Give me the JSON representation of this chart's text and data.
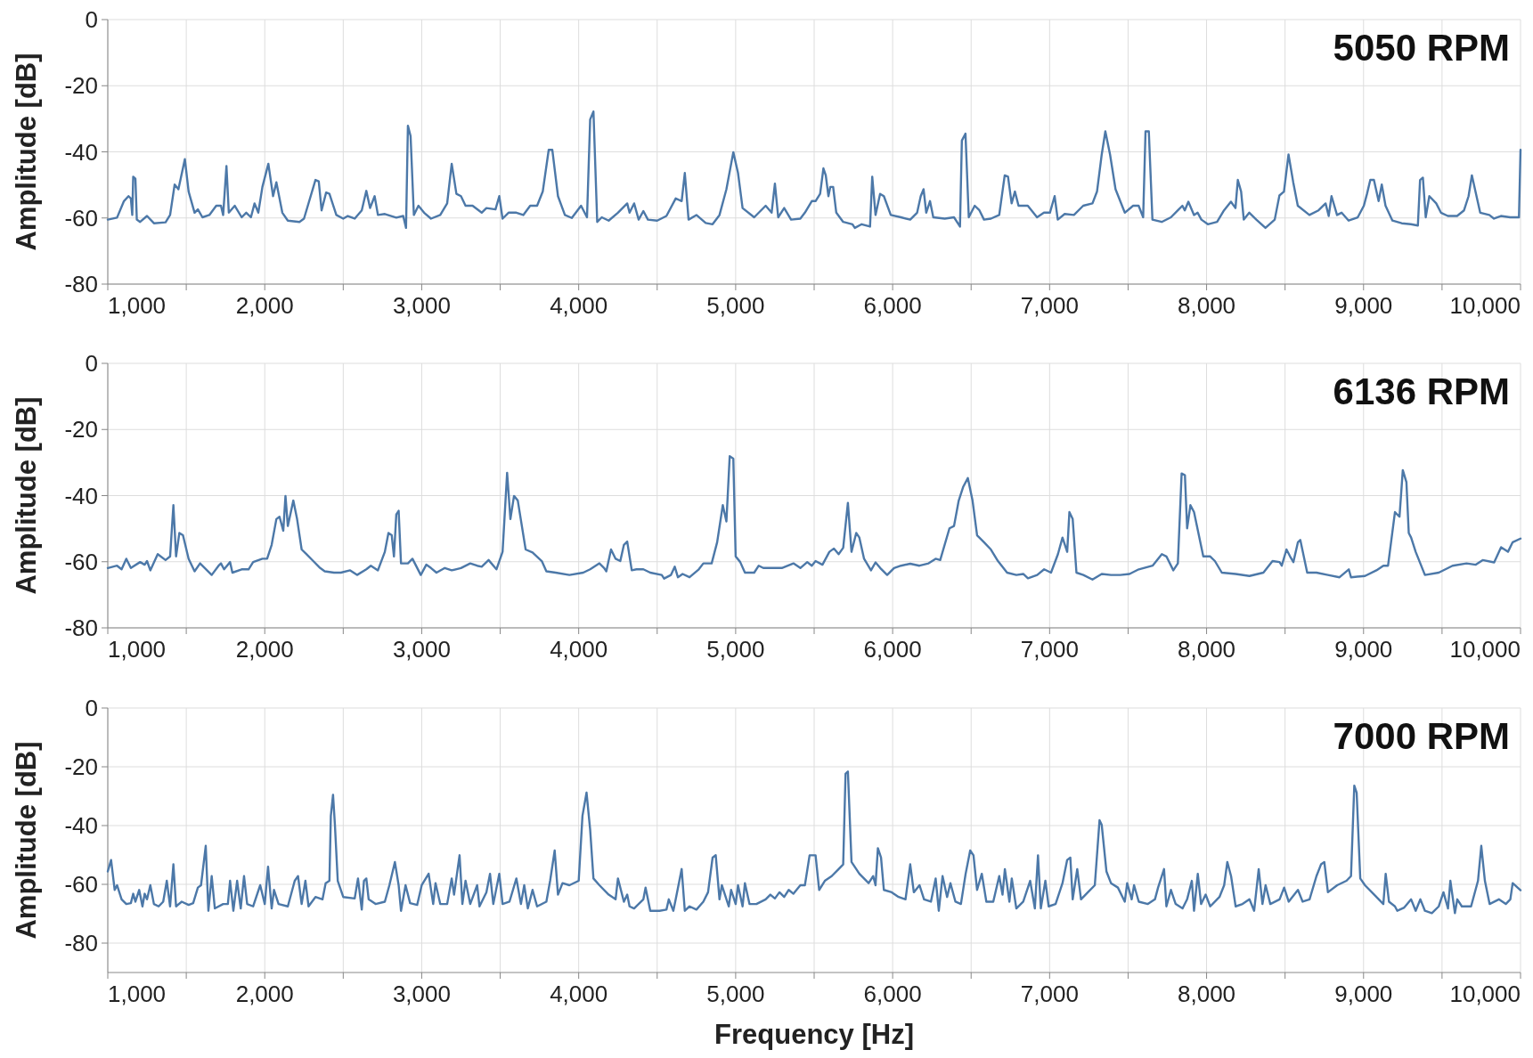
{
  "chart_data": [
    {
      "type": "line",
      "title": "5050 RPM",
      "ylabel": "Amplitude [dB]",
      "xlim": [
        1000,
        10000
      ],
      "ylim": [
        -80,
        0
      ],
      "grid": true,
      "marker": "none",
      "line_style": "solid",
      "xticks": [
        {
          "value": 1000,
          "label": "1,000"
        },
        {
          "value": 1500,
          "label": null
        },
        {
          "value": 2000,
          "label": "2,000"
        },
        {
          "value": 2500,
          "label": null
        },
        {
          "value": 3000,
          "label": "3,000"
        },
        {
          "value": 3500,
          "label": null
        },
        {
          "value": 4000,
          "label": "4,000"
        },
        {
          "value": 4500,
          "label": null
        },
        {
          "value": 5000,
          "label": "5,000"
        },
        {
          "value": 5500,
          "label": null
        },
        {
          "value": 6000,
          "label": "6,000"
        },
        {
          "value": 6500,
          "label": null
        },
        {
          "value": 7000,
          "label": "7,000"
        },
        {
          "value": 7500,
          "label": null
        },
        {
          "value": 8000,
          "label": "8,000"
        },
        {
          "value": 8500,
          "label": null
        },
        {
          "value": 9000,
          "label": "9,000"
        },
        {
          "value": 9500,
          "label": null
        },
        {
          "value": 10000,
          "label": "10,000"
        }
      ],
      "yticks": [
        0,
        -20,
        -40,
        -60,
        -80
      ],
      "series": [
        {
          "color": "#4c78a8",
          "x": [
            1000,
            1059,
            1103,
            1132,
            1147,
            1156,
            1162,
            1176,
            1185,
            1206,
            1250,
            1294,
            1368,
            1397,
            1426,
            1450,
            1491,
            1515,
            1553,
            1574,
            1603,
            1647,
            1691,
            1721,
            1735,
            1756,
            1771,
            1809,
            1853,
            1882,
            1912,
            1935,
            1959,
            1985,
            2023,
            2053,
            2074,
            2112,
            2147,
            2221,
            2250,
            2323,
            2344,
            2362,
            2391,
            2412,
            2456,
            2500,
            2529,
            2573,
            2618,
            2647,
            2671,
            2700,
            2721,
            2765,
            2838,
            2882,
            2900,
            2912,
            2929,
            2950,
            2979,
            3015,
            3059,
            3118,
            3162,
            3191,
            3221,
            3250,
            3279,
            3324,
            3382,
            3412,
            3470,
            3494,
            3515,
            3553,
            3603,
            3647,
            3691,
            3735,
            3771,
            3809,
            3832,
            3868,
            3912,
            3956,
            4015,
            4053,
            4073,
            4094,
            4118,
            4147,
            4191,
            4250,
            4309,
            4324,
            4353,
            4382,
            4412,
            4441,
            4500,
            4559,
            4618,
            4656,
            4676,
            4700,
            4750,
            4809,
            4853,
            4897,
            4941,
            4985,
            5015,
            5044,
            5118,
            5191,
            5229,
            5250,
            5271,
            5309,
            5353,
            5412,
            5441,
            5485,
            5509,
            5538,
            5559,
            5574,
            5591,
            5603,
            5621,
            5641,
            5685,
            5744,
            5759,
            5803,
            5856,
            5870,
            5891,
            5920,
            5944,
            5988,
            6053,
            6112,
            6156,
            6179,
            6197,
            6214,
            6238,
            6259,
            6332,
            6391,
            6429,
            6441,
            6464,
            6485,
            6523,
            6553,
            6582,
            6626,
            6679,
            6714,
            6735,
            6758,
            6779,
            6802,
            6861,
            6920,
            6964,
            7002,
            7032,
            7052,
            7096,
            7155,
            7214,
            7273,
            7302,
            7332,
            7355,
            7385,
            7420,
            7479,
            7532,
            7567,
            7596,
            7611,
            7632,
            7655,
            7714,
            7773,
            7817,
            7846,
            7861,
            7884,
            7920,
            7943,
            7967,
            8008,
            8067,
            8111,
            8155,
            8184,
            8199,
            8220,
            8237,
            8272,
            8317,
            8375,
            8434,
            8464,
            8493,
            8522,
            8552,
            8581,
            8655,
            8713,
            8758,
            8778,
            8796,
            8831,
            8860,
            8905,
            8963,
            9002,
            9022,
            9043,
            9066,
            9096,
            9116,
            9140,
            9184,
            9243,
            9301,
            9346,
            9360,
            9378,
            9396,
            9419,
            9463,
            9493,
            9537,
            9596,
            9640,
            9669,
            9690,
            9713,
            9743,
            9801,
            9831,
            9875,
            9934,
            9990,
            10000
          ],
          "values": [
            -60.5,
            -59.9,
            -54.9,
            -53.4,
            -54.1,
            -59.1,
            -47.5,
            -48.1,
            -60.5,
            -61.2,
            -59.4,
            -61.6,
            -61.3,
            -59.1,
            -49.9,
            -51.3,
            -42.2,
            -52,
            -58.4,
            -57.4,
            -59.8,
            -59.1,
            -56.3,
            -56.3,
            -59.1,
            -44.3,
            -58.4,
            -56.3,
            -59.8,
            -58.4,
            -59.8,
            -55.6,
            -58.4,
            -50.6,
            -43.6,
            -53.4,
            -49.2,
            -58.4,
            -60.8,
            -61.2,
            -60.2,
            -48.5,
            -48.9,
            -57.7,
            -52.3,
            -52.7,
            -59.1,
            -60.2,
            -59.4,
            -60.2,
            -57.7,
            -51.8,
            -57,
            -53.4,
            -59.1,
            -58.8,
            -59.9,
            -59.4,
            -63,
            -32.1,
            -35.2,
            -59.1,
            -56.3,
            -58.4,
            -60.2,
            -59.1,
            -55.6,
            -43.6,
            -52.7,
            -53.4,
            -56.3,
            -56.3,
            -58.4,
            -57,
            -57.4,
            -53.4,
            -60.2,
            -58.4,
            -58.4,
            -59.1,
            -56.3,
            -56.3,
            -52,
            -39.4,
            -39.4,
            -53.4,
            -59.1,
            -60,
            -56.3,
            -59.8,
            -30.2,
            -27.8,
            -61.2,
            -59.8,
            -60.8,
            -58.4,
            -55.6,
            -58.4,
            -55.6,
            -60.5,
            -57.9,
            -60.5,
            -60.8,
            -59.4,
            -54.1,
            -54.9,
            -46.4,
            -60.5,
            -59.1,
            -61.5,
            -61.9,
            -59.1,
            -51.3,
            -40.1,
            -46.4,
            -57,
            -59.8,
            -56.3,
            -58.4,
            -49.6,
            -59.8,
            -57,
            -60.5,
            -60.2,
            -58.4,
            -54.9,
            -54.9,
            -52.7,
            -45,
            -47.1,
            -53.4,
            -50.6,
            -50.6,
            -58.4,
            -61.2,
            -61.9,
            -63,
            -61.9,
            -62.6,
            -47.5,
            -59.1,
            -52.7,
            -53.4,
            -59.1,
            -59.8,
            -60.5,
            -58.4,
            -53.4,
            -51.3,
            -58.4,
            -54.9,
            -59.8,
            -60.2,
            -59.8,
            -62.6,
            -36.6,
            -34.5,
            -59.8,
            -56.3,
            -57.7,
            -60.5,
            -60.2,
            -59.1,
            -47.1,
            -47.5,
            -55.6,
            -52,
            -56.3,
            -56.3,
            -59.8,
            -58.4,
            -58.4,
            -53.4,
            -60.5,
            -58.8,
            -59.1,
            -56.3,
            -55.6,
            -52,
            -40.8,
            -33.8,
            -40.8,
            -51.3,
            -58.4,
            -56.3,
            -56.3,
            -59.8,
            -33.8,
            -33.8,
            -60.5,
            -61.2,
            -59.8,
            -57.7,
            -56.3,
            -57.7,
            -55.1,
            -59.1,
            -58.4,
            -60.5,
            -61.9,
            -61.2,
            -57.7,
            -55.1,
            -57,
            -48.5,
            -52,
            -60.5,
            -58.4,
            -60.5,
            -63,
            -60.5,
            -53.2,
            -52,
            -40.8,
            -49.2,
            -56.3,
            -59.1,
            -57.7,
            -55.6,
            -59.4,
            -53.4,
            -59.1,
            -58.4,
            -60.8,
            -59.8,
            -56.3,
            -52.7,
            -48.5,
            -48.5,
            -54.9,
            -49.9,
            -56.3,
            -60.8,
            -61.6,
            -61.9,
            -62.3,
            -48.5,
            -47.8,
            -59.8,
            -53.4,
            -55.6,
            -58.4,
            -59.4,
            -59.4,
            -57.7,
            -53.4,
            -47.1,
            -52,
            -58.4,
            -59.1,
            -60.2,
            -59.4,
            -59.8,
            -59.8,
            -39.4
          ]
        }
      ]
    },
    {
      "type": "line",
      "title": "6136 RPM",
      "ylabel": "Amplitude [dB]",
      "xlim": [
        1000,
        10000
      ],
      "ylim": [
        -80,
        0
      ],
      "grid": true,
      "marker": "none",
      "line_style": "solid",
      "xticks": [
        {
          "value": 1000,
          "label": "1,000"
        },
        {
          "value": 1500,
          "label": null
        },
        {
          "value": 2000,
          "label": "2,000"
        },
        {
          "value": 2500,
          "label": null
        },
        {
          "value": 3000,
          "label": "3,000"
        },
        {
          "value": 3500,
          "label": null
        },
        {
          "value": 4000,
          "label": "4,000"
        },
        {
          "value": 4500,
          "label": null
        },
        {
          "value": 5000,
          "label": "5,000"
        },
        {
          "value": 5500,
          "label": null
        },
        {
          "value": 6000,
          "label": "6,000"
        },
        {
          "value": 6500,
          "label": null
        },
        {
          "value": 7000,
          "label": "7,000"
        },
        {
          "value": 7500,
          "label": null
        },
        {
          "value": 8000,
          "label": "8,000"
        },
        {
          "value": 8500,
          "label": null
        },
        {
          "value": 9000,
          "label": "9,000"
        },
        {
          "value": 9500,
          "label": null
        },
        {
          "value": 10000,
          "label": "10,000"
        }
      ],
      "yticks": [
        0,
        -20,
        -40,
        -60,
        -80
      ],
      "series": [
        {
          "color": "#4c78a8",
          "x": [
            1000,
            1059,
            1088,
            1118,
            1147,
            1206,
            1235,
            1250,
            1271,
            1318,
            1368,
            1397,
            1418,
            1435,
            1456,
            1479,
            1515,
            1553,
            1588,
            1662,
            1706,
            1721,
            1741,
            1779,
            1794,
            1853,
            1897,
            1926,
            1985,
            2015,
            2044,
            2074,
            2094,
            2118,
            2132,
            2147,
            2182,
            2206,
            2235,
            2265,
            2309,
            2353,
            2382,
            2441,
            2485,
            2544,
            2588,
            2647,
            2676,
            2721,
            2765,
            2788,
            2809,
            2823,
            2838,
            2853,
            2868,
            2912,
            2941,
            2994,
            3029,
            3059,
            3094,
            3147,
            3191,
            3250,
            3309,
            3353,
            3382,
            3426,
            3476,
            3515,
            3544,
            3565,
            3588,
            3612,
            3662,
            3706,
            3765,
            3794,
            3853,
            3941,
            4029,
            4073,
            4132,
            4162,
            4176,
            4206,
            4235,
            4265,
            4288,
            4309,
            4338,
            4368,
            4412,
            4456,
            4529,
            4544,
            4588,
            4612,
            4632,
            4662,
            4706,
            4765,
            4794,
            4847,
            4882,
            4918,
            4941,
            4962,
            4985,
            5000,
            5029,
            5059,
            5118,
            5147,
            5176,
            5235,
            5294,
            5368,
            5412,
            5456,
            5485,
            5509,
            5553,
            5597,
            5626,
            5656,
            5685,
            5715,
            5738,
            5768,
            5788,
            5818,
            5862,
            5891,
            5921,
            5965,
            6009,
            6053,
            6112,
            6171,
            6229,
            6274,
            6303,
            6362,
            6391,
            6421,
            6450,
            6479,
            6509,
            6538,
            6582,
            6626,
            6671,
            6729,
            6788,
            6832,
            6862,
            6921,
            6965,
            7009,
            7053,
            7082,
            7112,
            7126,
            7147,
            7171,
            7215,
            7273,
            7332,
            7391,
            7450,
            7509,
            7568,
            7656,
            7715,
            7744,
            7788,
            7817,
            7841,
            7862,
            7876,
            7897,
            7920,
            7979,
            8023,
            8053,
            8097,
            8185,
            8273,
            8362,
            8420,
            8465,
            8479,
            8509,
            8532,
            8553,
            8582,
            8597,
            8641,
            8700,
            8773,
            8847,
            8906,
            8920,
            9009,
            9082,
            9126,
            9156,
            9200,
            9229,
            9250,
            9273,
            9288,
            9303,
            9332,
            9391,
            9479,
            9567,
            9656,
            9715,
            9759,
            9832,
            9876,
            9920,
            9950,
            10000
          ],
          "values": [
            -61.9,
            -61.2,
            -62.3,
            -59.1,
            -61.9,
            -60.1,
            -60.9,
            -59.8,
            -62.6,
            -57.7,
            -59.5,
            -58.4,
            -42.9,
            -58.4,
            -51.3,
            -52,
            -59.1,
            -62.9,
            -60.5,
            -64,
            -61.2,
            -60.5,
            -62.3,
            -60.1,
            -63.3,
            -62.3,
            -62.3,
            -60.1,
            -59.1,
            -59.1,
            -54.9,
            -47.1,
            -46.4,
            -50.6,
            -40.1,
            -49.2,
            -41.5,
            -47.1,
            -56.3,
            -57.7,
            -59.8,
            -61.9,
            -62.9,
            -63.3,
            -63.3,
            -62.6,
            -64,
            -62.3,
            -61.2,
            -62.6,
            -57,
            -51.3,
            -52,
            -58.4,
            -45.7,
            -44.6,
            -60.5,
            -60.5,
            -59.1,
            -64,
            -60.9,
            -61.9,
            -63.3,
            -61.9,
            -62.6,
            -61.9,
            -60.5,
            -61.2,
            -61.5,
            -59.5,
            -62.3,
            -57,
            -33.1,
            -47.1,
            -40.1,
            -41.5,
            -56.3,
            -57.2,
            -59.8,
            -62.9,
            -63.3,
            -64,
            -63.3,
            -62.3,
            -60.5,
            -61.9,
            -62.9,
            -56.3,
            -59.1,
            -59.8,
            -54.9,
            -53.9,
            -62.6,
            -62.3,
            -62.3,
            -63.3,
            -64,
            -65.1,
            -64,
            -61.5,
            -64.7,
            -63.7,
            -64.7,
            -62.3,
            -60.5,
            -60.5,
            -54.1,
            -42.9,
            -47.8,
            -28.1,
            -28.8,
            -58.4,
            -60.1,
            -63.3,
            -63.3,
            -61.2,
            -61.9,
            -61.9,
            -61.9,
            -60.5,
            -61.9,
            -60.1,
            -61.2,
            -59.8,
            -60.9,
            -57,
            -56,
            -57.7,
            -55.8,
            -42.2,
            -57,
            -51.3,
            -52.7,
            -59.1,
            -62.6,
            -60.2,
            -61.9,
            -64,
            -61.9,
            -61.2,
            -60.6,
            -61.2,
            -60.5,
            -59.1,
            -59.5,
            -49.9,
            -49.2,
            -41.5,
            -37.3,
            -34.7,
            -41.5,
            -52,
            -54.1,
            -56.3,
            -59.8,
            -63.3,
            -64,
            -63.7,
            -65,
            -64,
            -62.3,
            -63.3,
            -57.7,
            -52.7,
            -57,
            -45,
            -47.1,
            -63.3,
            -64,
            -65.4,
            -63.7,
            -64,
            -64,
            -63.7,
            -62.3,
            -61.2,
            -57.7,
            -58.4,
            -62.6,
            -60.5,
            -33.3,
            -33.8,
            -49.9,
            -42.9,
            -45,
            -58.4,
            -58.4,
            -59.8,
            -63.3,
            -63.7,
            -64.3,
            -63.3,
            -59.8,
            -60.1,
            -61.2,
            -56.3,
            -58.4,
            -60.1,
            -54.1,
            -53.4,
            -63.3,
            -63.3,
            -64,
            -64.7,
            -62.3,
            -64.7,
            -64.3,
            -62.6,
            -61.2,
            -61.2,
            -45,
            -46.4,
            -32.3,
            -35.9,
            -51.3,
            -52.7,
            -57,
            -64,
            -63.3,
            -61.2,
            -60.5,
            -60.9,
            -59.5,
            -60.2,
            -55.6,
            -57,
            -54.1,
            -53
          ]
        }
      ]
    },
    {
      "type": "line",
      "title": "7000 RPM",
      "ylabel": "Amplitude [dB]",
      "xlabel": "Frequency [Hz]",
      "xlim": [
        1000,
        10000
      ],
      "ylim": [
        -90,
        0
      ],
      "grid": true,
      "marker": "none",
      "line_style": "solid",
      "xticks": [
        {
          "value": 1000,
          "label": "1,000"
        },
        {
          "value": 1500,
          "label": null
        },
        {
          "value": 2000,
          "label": "2,000"
        },
        {
          "value": 2500,
          "label": null
        },
        {
          "value": 3000,
          "label": "3,000"
        },
        {
          "value": 3500,
          "label": null
        },
        {
          "value": 4000,
          "label": "4,000"
        },
        {
          "value": 4500,
          "label": null
        },
        {
          "value": 5000,
          "label": "5,000"
        },
        {
          "value": 5500,
          "label": null
        },
        {
          "value": 6000,
          "label": "6,000"
        },
        {
          "value": 6500,
          "label": null
        },
        {
          "value": 7000,
          "label": "7,000"
        },
        {
          "value": 7500,
          "label": null
        },
        {
          "value": 8000,
          "label": "8,000"
        },
        {
          "value": 8500,
          "label": null
        },
        {
          "value": 9000,
          "label": "9,000"
        },
        {
          "value": 9500,
          "label": null
        },
        {
          "value": 10000,
          "label": "10,000"
        }
      ],
      "yticks": [
        0,
        -20,
        -40,
        -60,
        -80
      ],
      "series": [
        {
          "color": "#4c78a8",
          "x": [
            1000,
            1021,
            1044,
            1059,
            1088,
            1118,
            1147,
            1162,
            1176,
            1200,
            1221,
            1235,
            1250,
            1271,
            1294,
            1324,
            1353,
            1376,
            1397,
            1418,
            1435,
            1471,
            1515,
            1544,
            1574,
            1594,
            1624,
            1641,
            1662,
            1682,
            1735,
            1765,
            1779,
            1800,
            1824,
            1847,
            1868,
            1888,
            1926,
            1971,
            2000,
            2021,
            2044,
            2059,
            2088,
            2147,
            2191,
            2212,
            2235,
            2259,
            2279,
            2323,
            2368,
            2388,
            2412,
            2421,
            2435,
            2447,
            2465,
            2500,
            2573,
            2594,
            2618,
            2632,
            2647,
            2662,
            2706,
            2765,
            2794,
            2829,
            2853,
            2868,
            2897,
            2926,
            2971,
            3000,
            3044,
            3073,
            3088,
            3118,
            3162,
            3191,
            3206,
            3241,
            3259,
            3279,
            3309,
            3353,
            3368,
            3412,
            3435,
            3456,
            3494,
            3515,
            3559,
            3603,
            3632,
            3653,
            3676,
            3706,
            3735,
            3794,
            3818,
            3847,
            3868,
            3897,
            3941,
            4000,
            4024,
            4050,
            4073,
            4094,
            4132,
            4191,
            4235,
            4250,
            4288,
            4309,
            4324,
            4353,
            4412,
            4426,
            4456,
            4515,
            4559,
            4574,
            4603,
            4618,
            4656,
            4676,
            4706,
            4750,
            4794,
            4824,
            4853,
            4873,
            4897,
            4912,
            4956,
            4971,
            5000,
            5015,
            5044,
            5059,
            5088,
            5132,
            5191,
            5221,
            5250,
            5279,
            5309,
            5338,
            5368,
            5412,
            5441,
            5471,
            5509,
            5532,
            5568,
            5612,
            5656,
            5685,
            5700,
            5715,
            5738,
            5788,
            5847,
            5876,
            5891,
            5906,
            5926,
            5944,
            5994,
            6038,
            6082,
            6112,
            6135,
            6171,
            6200,
            6244,
            6274,
            6294,
            6318,
            6347,
            6368,
            6400,
            6435,
            6465,
            6494,
            6515,
            6538,
            6568,
            6597,
            6641,
            6679,
            6700,
            6715,
            6744,
            6759,
            6788,
            6832,
            6876,
            6906,
            6926,
            6944,
            6973,
            6994,
            7038,
            7082,
            7112,
            7132,
            7147,
            7176,
            7200,
            7244,
            7288,
            7318,
            7332,
            7362,
            7391,
            7435,
            7479,
            7494,
            7523,
            7538,
            7568,
            7626,
            7671,
            7691,
            7729,
            7744,
            7773,
            7803,
            7847,
            7876,
            7906,
            7920,
            7944,
            7965,
            7994,
            8023,
            8053,
            8082,
            8112,
            8132,
            8156,
            8185,
            8229,
            8273,
            8303,
            8332,
            8356,
            8376,
            8406,
            8465,
            8494,
            8523,
            8582,
            8612,
            8656,
            8700,
            8729,
            8750,
            8773,
            8832,
            8891,
            8920,
            8941,
            8956,
            8979,
            9009,
            9068,
            9126,
            9141,
            9162,
            9200,
            9215,
            9259,
            9303,
            9332,
            9362,
            9391,
            9435,
            9479,
            9509,
            9538,
            9553,
            9582,
            9597,
            9626,
            9685,
            9729,
            9750,
            9773,
            9803,
            9862,
            9906,
            9935,
            9950,
            10000
          ],
          "values": [
            -55.6,
            -51.7,
            -61.9,
            -60.3,
            -65.1,
            -66.7,
            -66.4,
            -63.2,
            -65.9,
            -61.9,
            -67.5,
            -63.2,
            -65.1,
            -60.3,
            -66.7,
            -67.5,
            -65.9,
            -58.8,
            -67.5,
            -53.2,
            -67.5,
            -65.9,
            -67,
            -66.4,
            -61.1,
            -60.3,
            -46.9,
            -69,
            -57.2,
            -68.2,
            -66.7,
            -66.7,
            -58.8,
            -69,
            -58.8,
            -68.2,
            -57.2,
            -66.7,
            -67.5,
            -60.3,
            -66.7,
            -54,
            -68.2,
            -61.9,
            -66.7,
            -67.5,
            -58.8,
            -57.2,
            -66.7,
            -58.8,
            -67.5,
            -64.3,
            -65.1,
            -59.6,
            -58.8,
            -36.7,
            -29.5,
            -39.8,
            -58.8,
            -64.3,
            -64.8,
            -58,
            -68.6,
            -58.8,
            -58,
            -65.1,
            -66.7,
            -65.9,
            -60.3,
            -52.4,
            -60.3,
            -69,
            -60.3,
            -66.4,
            -67,
            -60.3,
            -56.4,
            -66.7,
            -59.6,
            -66.7,
            -66.7,
            -58,
            -63.5,
            -50.1,
            -66.7,
            -58.8,
            -66.7,
            -60.3,
            -67.5,
            -62.7,
            -56.4,
            -66.7,
            -56.4,
            -66.7,
            -65.9,
            -58,
            -66.7,
            -60.3,
            -68.2,
            -61.9,
            -67.5,
            -65.9,
            -58.8,
            -48.5,
            -63.5,
            -59.6,
            -60.3,
            -58.8,
            -36.7,
            -28.8,
            -41.4,
            -58,
            -60.3,
            -63.5,
            -65.1,
            -58,
            -65.9,
            -63.5,
            -67.5,
            -68.2,
            -65.1,
            -61.1,
            -69,
            -69,
            -68.6,
            -65.1,
            -69,
            -65.1,
            -54.8,
            -69,
            -67.5,
            -68.6,
            -65.9,
            -62.7,
            -50.9,
            -50.1,
            -65.1,
            -60.3,
            -67.5,
            -61.9,
            -66.7,
            -60.3,
            -67.5,
            -59.6,
            -66.7,
            -66.7,
            -65.1,
            -63.5,
            -64.8,
            -62.7,
            -64.3,
            -61.9,
            -63.2,
            -60.3,
            -60.3,
            -50.1,
            -50.1,
            -61.9,
            -58.8,
            -57.2,
            -54.8,
            -53.2,
            -22.4,
            -21.6,
            -52.4,
            -56.4,
            -59.6,
            -57.2,
            -60.3,
            -47.7,
            -50.9,
            -61.9,
            -62.7,
            -64.3,
            -65.1,
            -53.2,
            -62.7,
            -60.3,
            -65.1,
            -65.9,
            -58,
            -69,
            -57.2,
            -64.3,
            -59.6,
            -65.9,
            -66.7,
            -56.4,
            -48.5,
            -50.1,
            -61.9,
            -56.4,
            -65.9,
            -65.9,
            -57.2,
            -63.5,
            -54.8,
            -65.9,
            -58,
            -68.2,
            -65.9,
            -58.8,
            -68.2,
            -50.1,
            -68.2,
            -58.8,
            -67.5,
            -66.7,
            -59.6,
            -51.7,
            -50.9,
            -65.1,
            -54.8,
            -65.1,
            -62.7,
            -60.3,
            -38.2,
            -39.8,
            -55.6,
            -59.6,
            -61.1,
            -65.9,
            -59.6,
            -65.1,
            -60.3,
            -65.9,
            -66.7,
            -65.1,
            -61.1,
            -54.8,
            -67.5,
            -61.9,
            -66.7,
            -68.2,
            -65.1,
            -58.8,
            -69,
            -56.4,
            -66.7,
            -63.5,
            -67.5,
            -65.9,
            -64.3,
            -60.3,
            -52.4,
            -57.2,
            -67.5,
            -66.7,
            -65.1,
            -69,
            -54.8,
            -66.7,
            -60.3,
            -66.7,
            -65.1,
            -61.1,
            -65.9,
            -61.9,
            -65.9,
            -65.1,
            -57.2,
            -53.2,
            -52.4,
            -62.7,
            -60.3,
            -58.8,
            -57.2,
            -26.4,
            -28.8,
            -58,
            -60.3,
            -63.5,
            -66.7,
            -56.4,
            -65.9,
            -67.5,
            -69,
            -67.9,
            -65.1,
            -69,
            -65.1,
            -69,
            -69.8,
            -67.5,
            -62.7,
            -68.2,
            -58.8,
            -69.8,
            -65.1,
            -67.5,
            -67.5,
            -58.8,
            -46.9,
            -58.8,
            -66.7,
            -65.1,
            -66.7,
            -65.1,
            -59.6,
            -62
          ]
        }
      ]
    }
  ]
}
